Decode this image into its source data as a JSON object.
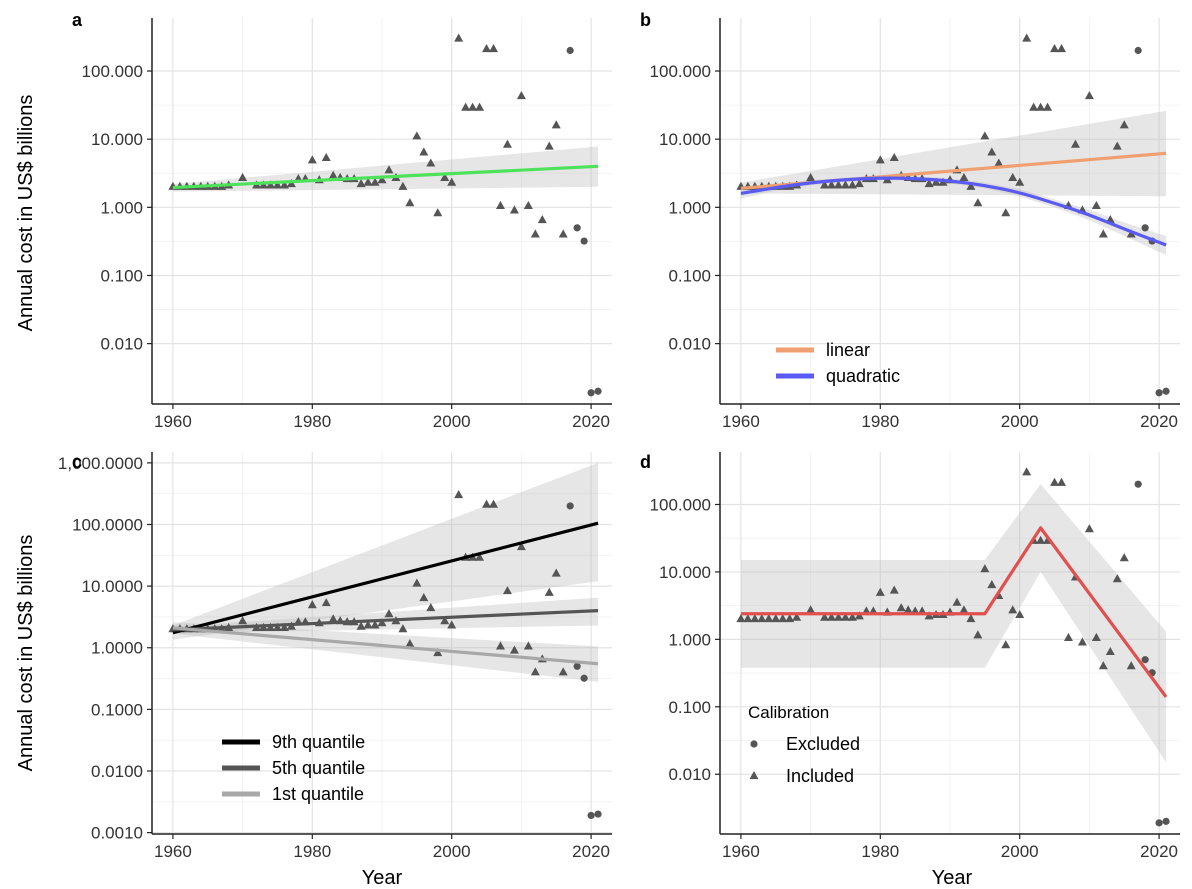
{
  "figure": {
    "xlabel": "Year",
    "ylabel": "Annual cost in US$ billions"
  },
  "chart_data": [
    {
      "panel": "a",
      "type": "scatter",
      "y_scale": "log10",
      "xlim": [
        1957,
        2023
      ],
      "ylim": [
        0.0013,
        600
      ],
      "x_ticks": [
        1960,
        1980,
        2000,
        2020
      ],
      "y_ticks": [
        0.01,
        0.1,
        1,
        10,
        100
      ],
      "y_tick_labels": [
        "0.010",
        "0.100",
        "1.000",
        "10.000",
        "100.000"
      ],
      "points_included": [
        [
          1960,
          2.0
        ],
        [
          1961,
          2.0
        ],
        [
          1962,
          2.0
        ],
        [
          1963,
          2.0
        ],
        [
          1964,
          2.0
        ],
        [
          1965,
          2.0
        ],
        [
          1966,
          2.0
        ],
        [
          1967,
          2.0
        ],
        [
          1968,
          2.1
        ],
        [
          1970,
          2.7
        ],
        [
          1972,
          2.1
        ],
        [
          1973,
          2.1
        ],
        [
          1974,
          2.1
        ],
        [
          1975,
          2.1
        ],
        [
          1976,
          2.1
        ],
        [
          1977,
          2.2
        ],
        [
          1978,
          2.6
        ],
        [
          1979,
          2.6
        ],
        [
          1980,
          4.9
        ],
        [
          1981,
          2.5
        ],
        [
          1982,
          5.3
        ],
        [
          1983,
          2.9
        ],
        [
          1984,
          2.7
        ],
        [
          1985,
          2.6
        ],
        [
          1986,
          2.6
        ],
        [
          1987,
          2.2
        ],
        [
          1988,
          2.3
        ],
        [
          1989,
          2.3
        ],
        [
          1990,
          2.5
        ],
        [
          1991,
          3.5
        ],
        [
          1992,
          2.7
        ],
        [
          1993,
          2.0
        ],
        [
          1994,
          1.15
        ],
        [
          1995,
          11.0
        ],
        [
          1996,
          6.4
        ],
        [
          1997,
          4.4
        ],
        [
          1998,
          0.82
        ],
        [
          1999,
          2.7
        ],
        [
          2000,
          2.3
        ],
        [
          2001,
          300
        ],
        [
          2002,
          29
        ],
        [
          2003,
          29
        ],
        [
          2004,
          29
        ],
        [
          2005,
          210
        ],
        [
          2006,
          210
        ],
        [
          2007,
          1.05
        ],
        [
          2008,
          8.3
        ],
        [
          2009,
          0.9
        ],
        [
          2010,
          43
        ],
        [
          2011,
          1.05
        ],
        [
          2012,
          0.4
        ],
        [
          2013,
          0.65
        ],
        [
          2014,
          7.8
        ],
        [
          2015,
          16
        ],
        [
          2016,
          0.4
        ]
      ],
      "points_excluded": [
        [
          2017,
          200
        ],
        [
          2018,
          0.5
        ],
        [
          2019,
          0.32
        ],
        [
          2020,
          0.0019
        ],
        [
          2021,
          0.002
        ]
      ],
      "series": [
        {
          "name": "",
          "color": "#4ee25a",
          "x": [
            1960,
            2021
          ],
          "y": [
            1.95,
            4.0
          ],
          "ci_lower": [
            1.7,
            2.0
          ],
          "ci_upper": [
            2.2,
            7.8
          ]
        }
      ]
    },
    {
      "panel": "b",
      "type": "scatter",
      "y_scale": "log10",
      "xlim": [
        1957,
        2023
      ],
      "ylim": [
        0.0013,
        600
      ],
      "x_ticks": [
        1960,
        1980,
        2000,
        2020
      ],
      "y_ticks": [
        0.01,
        0.1,
        1,
        10,
        100
      ],
      "y_tick_labels": [
        "0.010",
        "0.100",
        "1.000",
        "10.000",
        "100.000"
      ],
      "points_included": [
        [
          1960,
          2.0
        ],
        [
          1961,
          2.0
        ],
        [
          1962,
          2.0
        ],
        [
          1963,
          2.0
        ],
        [
          1964,
          2.0
        ],
        [
          1965,
          2.0
        ],
        [
          1966,
          2.0
        ],
        [
          1967,
          2.0
        ],
        [
          1968,
          2.1
        ],
        [
          1970,
          2.7
        ],
        [
          1972,
          2.1
        ],
        [
          1973,
          2.1
        ],
        [
          1974,
          2.1
        ],
        [
          1975,
          2.1
        ],
        [
          1976,
          2.1
        ],
        [
          1977,
          2.2
        ],
        [
          1978,
          2.6
        ],
        [
          1979,
          2.6
        ],
        [
          1980,
          4.9
        ],
        [
          1981,
          2.5
        ],
        [
          1982,
          5.3
        ],
        [
          1983,
          2.9
        ],
        [
          1984,
          2.7
        ],
        [
          1985,
          2.6
        ],
        [
          1986,
          2.6
        ],
        [
          1987,
          2.2
        ],
        [
          1988,
          2.3
        ],
        [
          1989,
          2.3
        ],
        [
          1990,
          2.5
        ],
        [
          1991,
          3.5
        ],
        [
          1992,
          2.7
        ],
        [
          1993,
          2.0
        ],
        [
          1994,
          1.15
        ],
        [
          1995,
          11.0
        ],
        [
          1996,
          6.4
        ],
        [
          1997,
          4.4
        ],
        [
          1998,
          0.82
        ],
        [
          1999,
          2.7
        ],
        [
          2000,
          2.3
        ],
        [
          2001,
          300
        ],
        [
          2002,
          29
        ],
        [
          2003,
          29
        ],
        [
          2004,
          29
        ],
        [
          2005,
          210
        ],
        [
          2006,
          210
        ],
        [
          2007,
          1.05
        ],
        [
          2008,
          8.3
        ],
        [
          2009,
          0.9
        ],
        [
          2010,
          43
        ],
        [
          2011,
          1.05
        ],
        [
          2012,
          0.4
        ],
        [
          2013,
          0.65
        ],
        [
          2014,
          7.8
        ],
        [
          2015,
          16
        ],
        [
          2016,
          0.4
        ]
      ],
      "points_excluded": [
        [
          2017,
          200
        ],
        [
          2018,
          0.5
        ],
        [
          2019,
          0.32
        ],
        [
          2020,
          0.0019
        ],
        [
          2021,
          0.002
        ]
      ],
      "legend": {
        "position": "bottom-left",
        "entries": [
          "linear",
          "quadratic"
        ]
      },
      "series": [
        {
          "name": "linear",
          "color": "#f0a070",
          "x": [
            1960,
            2021
          ],
          "y": [
            1.9,
            6.2
          ],
          "ci_lower": [
            1.6,
            1.45
          ],
          "ci_upper": [
            2.3,
            26
          ]
        },
        {
          "name": "quadratic",
          "color": "#5a5af5",
          "x": [
            1960,
            1965,
            1970,
            1975,
            1980,
            1985,
            1990,
            1995,
            2000,
            2005,
            2010,
            2015,
            2021
          ],
          "y": [
            1.6,
            1.95,
            2.3,
            2.55,
            2.7,
            2.65,
            2.45,
            2.1,
            1.65,
            1.15,
            0.78,
            0.48,
            0.28
          ],
          "ci_lower": [
            1.35,
            1.75,
            2.1,
            2.35,
            2.5,
            2.45,
            2.25,
            1.9,
            1.45,
            1.0,
            0.65,
            0.38,
            0.2
          ],
          "ci_upper": [
            1.9,
            2.2,
            2.5,
            2.75,
            2.9,
            2.85,
            2.65,
            2.3,
            1.85,
            1.3,
            0.92,
            0.6,
            0.38
          ]
        }
      ]
    },
    {
      "panel": "c",
      "type": "scatter",
      "y_scale": "log10",
      "xlim": [
        1957,
        2023
      ],
      "ylim": [
        0.00095,
        1500
      ],
      "x_ticks": [
        1960,
        1980,
        2000,
        2020
      ],
      "y_ticks": [
        0.001,
        0.01,
        0.1,
        1,
        10,
        100,
        1000
      ],
      "y_tick_labels": [
        "0.0010",
        "0.0100",
        "0.1000",
        "1.0000",
        "10.0000",
        "100.0000",
        "1,000.0000"
      ],
      "points_included": [
        [
          1960,
          2.0
        ],
        [
          1961,
          2.0
        ],
        [
          1962,
          2.0
        ],
        [
          1963,
          2.0
        ],
        [
          1964,
          2.0
        ],
        [
          1965,
          2.0
        ],
        [
          1966,
          2.0
        ],
        [
          1967,
          2.0
        ],
        [
          1968,
          2.1
        ],
        [
          1970,
          2.7
        ],
        [
          1972,
          2.1
        ],
        [
          1973,
          2.1
        ],
        [
          1974,
          2.1
        ],
        [
          1975,
          2.1
        ],
        [
          1976,
          2.1
        ],
        [
          1977,
          2.2
        ],
        [
          1978,
          2.6
        ],
        [
          1979,
          2.6
        ],
        [
          1980,
          4.9
        ],
        [
          1981,
          2.5
        ],
        [
          1982,
          5.3
        ],
        [
          1983,
          2.9
        ],
        [
          1984,
          2.7
        ],
        [
          1985,
          2.6
        ],
        [
          1986,
          2.6
        ],
        [
          1987,
          2.2
        ],
        [
          1988,
          2.3
        ],
        [
          1989,
          2.3
        ],
        [
          1990,
          2.5
        ],
        [
          1991,
          3.5
        ],
        [
          1992,
          2.7
        ],
        [
          1993,
          2.0
        ],
        [
          1994,
          1.15
        ],
        [
          1995,
          11.0
        ],
        [
          1996,
          6.4
        ],
        [
          1997,
          4.4
        ],
        [
          1998,
          0.82
        ],
        [
          1999,
          2.7
        ],
        [
          2000,
          2.3
        ],
        [
          2001,
          300
        ],
        [
          2002,
          29
        ],
        [
          2003,
          29
        ],
        [
          2004,
          29
        ],
        [
          2005,
          210
        ],
        [
          2006,
          210
        ],
        [
          2007,
          1.05
        ],
        [
          2008,
          8.3
        ],
        [
          2009,
          0.9
        ],
        [
          2010,
          43
        ],
        [
          2011,
          1.05
        ],
        [
          2012,
          0.4
        ],
        [
          2013,
          0.65
        ],
        [
          2014,
          7.8
        ],
        [
          2015,
          16
        ],
        [
          2016,
          0.4
        ]
      ],
      "points_excluded": [
        [
          2017,
          200
        ],
        [
          2018,
          0.5
        ],
        [
          2019,
          0.32
        ],
        [
          2020,
          0.0019
        ],
        [
          2021,
          0.002
        ]
      ],
      "legend": {
        "position": "bottom-left",
        "entries": [
          "9th quantile",
          "5th quantile",
          "1st quantile"
        ]
      },
      "series": [
        {
          "name": "9th quantile",
          "color": "#000000",
          "x": [
            1960,
            2021
          ],
          "y": [
            1.75,
            105
          ],
          "ci_lower": [
            1.35,
            12
          ],
          "ci_upper": [
            2.3,
            1000
          ]
        },
        {
          "name": "5th quantile",
          "color": "#555555",
          "x": [
            1960,
            2021
          ],
          "y": [
            1.95,
            4.0
          ],
          "ci_lower": [
            1.7,
            2.3
          ],
          "ci_upper": [
            2.2,
            6.5
          ]
        },
        {
          "name": "1st quantile",
          "color": "#a8a8a8",
          "x": [
            1960,
            2021
          ],
          "y": [
            2.1,
            0.55
          ],
          "ci_lower": [
            1.7,
            0.28
          ],
          "ci_upper": [
            2.6,
            1.05
          ]
        }
      ]
    },
    {
      "panel": "d",
      "type": "scatter",
      "y_scale": "log10",
      "xlim": [
        1957,
        2023
      ],
      "ylim": [
        0.0013,
        600
      ],
      "x_ticks": [
        1960,
        1980,
        2000,
        2020
      ],
      "y_ticks": [
        0.01,
        0.1,
        1,
        10,
        100
      ],
      "y_tick_labels": [
        "0.010",
        "0.100",
        "1.000",
        "10.000",
        "100.000"
      ],
      "points_included": [
        [
          1960,
          2.0
        ],
        [
          1961,
          2.0
        ],
        [
          1962,
          2.0
        ],
        [
          1963,
          2.0
        ],
        [
          1964,
          2.0
        ],
        [
          1965,
          2.0
        ],
        [
          1966,
          2.0
        ],
        [
          1967,
          2.0
        ],
        [
          1968,
          2.1
        ],
        [
          1970,
          2.7
        ],
        [
          1972,
          2.1
        ],
        [
          1973,
          2.1
        ],
        [
          1974,
          2.1
        ],
        [
          1975,
          2.1
        ],
        [
          1976,
          2.1
        ],
        [
          1977,
          2.2
        ],
        [
          1978,
          2.6
        ],
        [
          1979,
          2.6
        ],
        [
          1980,
          4.9
        ],
        [
          1981,
          2.5
        ],
        [
          1982,
          5.3
        ],
        [
          1983,
          2.9
        ],
        [
          1984,
          2.7
        ],
        [
          1985,
          2.6
        ],
        [
          1986,
          2.6
        ],
        [
          1987,
          2.2
        ],
        [
          1988,
          2.3
        ],
        [
          1989,
          2.3
        ],
        [
          1990,
          2.5
        ],
        [
          1991,
          3.5
        ],
        [
          1992,
          2.7
        ],
        [
          1993,
          2.0
        ],
        [
          1994,
          1.15
        ],
        [
          1995,
          11.0
        ],
        [
          1996,
          6.4
        ],
        [
          1997,
          4.4
        ],
        [
          1998,
          0.82
        ],
        [
          1999,
          2.7
        ],
        [
          2000,
          2.3
        ],
        [
          2001,
          300
        ],
        [
          2002,
          29
        ],
        [
          2003,
          29
        ],
        [
          2004,
          29
        ],
        [
          2005,
          210
        ],
        [
          2006,
          210
        ],
        [
          2007,
          1.05
        ],
        [
          2008,
          8.3
        ],
        [
          2009,
          0.9
        ],
        [
          2010,
          43
        ],
        [
          2011,
          1.05
        ],
        [
          2012,
          0.4
        ],
        [
          2013,
          0.65
        ],
        [
          2014,
          7.8
        ],
        [
          2015,
          16
        ],
        [
          2016,
          0.4
        ]
      ],
      "points_excluded": [
        [
          2017,
          200
        ],
        [
          2018,
          0.5
        ],
        [
          2019,
          0.32
        ],
        [
          2020,
          0.0019
        ],
        [
          2021,
          0.002
        ]
      ],
      "legend": {
        "position": "bottom-left",
        "title": "Calibration",
        "entries": [
          "Excluded",
          "Included"
        ]
      },
      "series": [
        {
          "name": "",
          "color": "#e0504e",
          "x": [
            1960,
            1995,
            2003,
            2021
          ],
          "y": [
            2.4,
            2.4,
            45,
            0.14
          ],
          "ci_lower": [
            0.38,
            0.38,
            10,
            0.015
          ],
          "ci_upper": [
            15,
            15,
            200,
            1.3
          ]
        }
      ]
    }
  ]
}
